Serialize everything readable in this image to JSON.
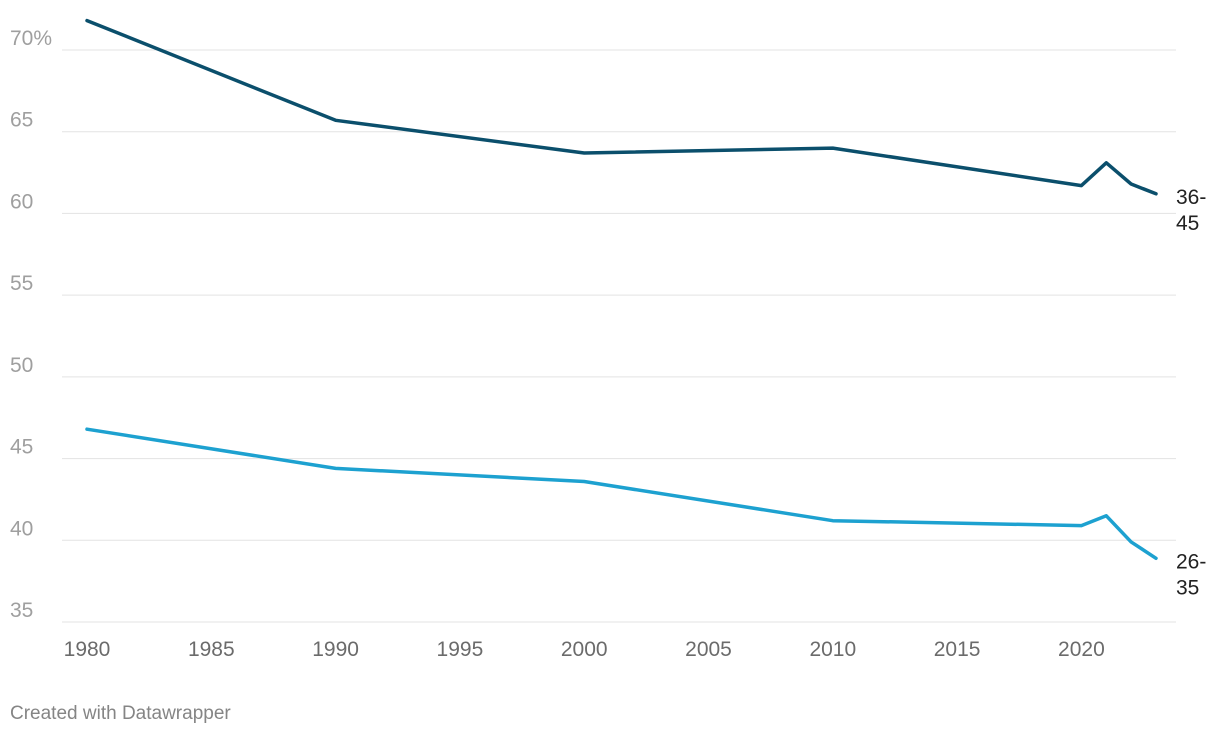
{
  "chart_data": {
    "type": "line",
    "title": "",
    "xlabel": "",
    "ylabel": "",
    "xlim": [
      1980,
      2023
    ],
    "ylim": [
      35,
      72
    ],
    "x_ticks": [
      1980,
      1985,
      1990,
      1995,
      2000,
      2005,
      2010,
      2015,
      2020
    ],
    "y_ticks": [
      35,
      40,
      45,
      50,
      55,
      60,
      65,
      70
    ],
    "y_tick_labels": [
      "35",
      "40",
      "45",
      "50",
      "55",
      "60",
      "65",
      "70%"
    ],
    "grid": true,
    "legend": "inline-end-labels",
    "series": [
      {
        "label_lines": [
          "36-",
          "45"
        ],
        "color": "#0b4f6c",
        "x": [
          1980,
          1990,
          2000,
          2010,
          2020,
          2021,
          2022,
          2023
        ],
        "y": [
          71.8,
          65.7,
          63.7,
          64.0,
          61.7,
          63.1,
          61.8,
          61.2
        ]
      },
      {
        "label_lines": [
          "26-",
          "35"
        ],
        "color": "#1da1d0",
        "x": [
          1980,
          1990,
          2000,
          2010,
          2020,
          2021,
          2022,
          2023
        ],
        "y": [
          46.8,
          44.4,
          43.6,
          41.2,
          40.9,
          41.5,
          39.9,
          38.9
        ]
      }
    ]
  },
  "footer": {
    "credit": "Created with Datawrapper"
  }
}
